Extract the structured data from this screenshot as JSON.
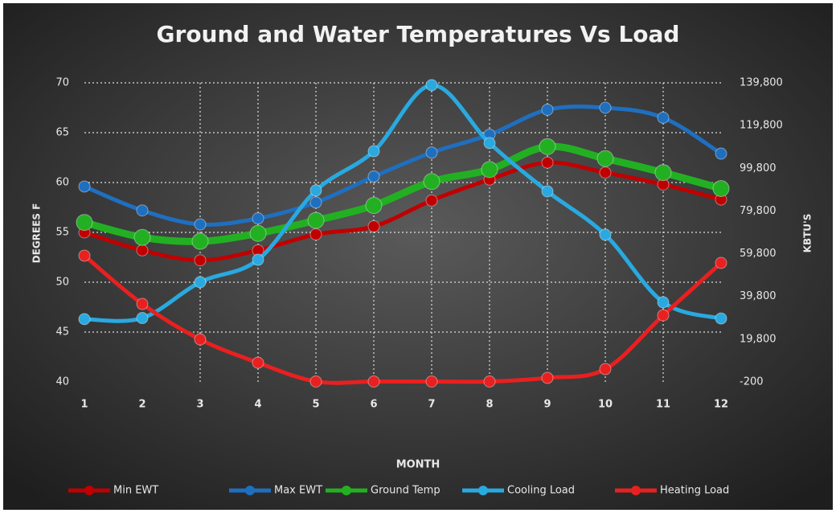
{
  "chart_data": {
    "type": "line",
    "title": "Ground and Water Temperatures Vs Load",
    "x_label": "MONTH",
    "y_label": "DEGREES F",
    "y2_label": "KBTU'S",
    "categories": [
      "1",
      "2",
      "3",
      "4",
      "5",
      "6",
      "7",
      "8",
      "9",
      "10",
      "11",
      "12"
    ],
    "ylim": [
      40,
      70
    ],
    "yticks": [
      40,
      45,
      50,
      55,
      60,
      65,
      70
    ],
    "y2lim": [
      -200,
      139800
    ],
    "y2ticks": [
      -200,
      {
        "value": 19800,
        "label": "19,800"
      },
      {
        "value": 39800,
        "label": "39,800"
      },
      {
        "value": 59800,
        "label": "59,800"
      },
      {
        "value": 79800,
        "label": "79,800"
      },
      {
        "value": 99800,
        "label": "99,800"
      },
      {
        "value": 119800,
        "label": "119,800"
      },
      {
        "value": 139800,
        "label": "139,800"
      }
    ],
    "grid": true,
    "legend": "bottom",
    "series": [
      {
        "name": "Min EWT",
        "color": "#c00000",
        "values": [
          55,
          53.2,
          52.2,
          53.2,
          54.8,
          55.6,
          58.2,
          60.3,
          62,
          61,
          59.8,
          58.3
        ]
      },
      {
        "name": "Max EWT",
        "color": "#1f6fc0",
        "values": [
          59.6,
          57.2,
          55.8,
          56.4,
          58,
          60.6,
          63,
          64.8,
          67.3,
          67.5,
          66.5,
          62.9
        ]
      },
      {
        "name": "Ground Temp",
        "color": "#22b022",
        "values": [
          56,
          54.5,
          54.1,
          54.9,
          56.2,
          57.7,
          60.1,
          61.3,
          63.6,
          62.4,
          61,
          59.4
        ]
      },
      {
        "name": "Cooling Load",
        "color": "#29a9e0",
        "axis": "y2",
        "values": [
          29200,
          29700,
          46500,
          57000,
          89400,
          107800,
          138700,
          111600,
          89000,
          68700,
          37100,
          29500
        ]
      },
      {
        "name": "Heating Load",
        "color": "#e82020",
        "axis": "y2",
        "values": [
          58900,
          36300,
          19700,
          8800,
          0,
          0,
          0,
          0,
          1700,
          5800,
          31000,
          55500
        ]
      }
    ]
  }
}
